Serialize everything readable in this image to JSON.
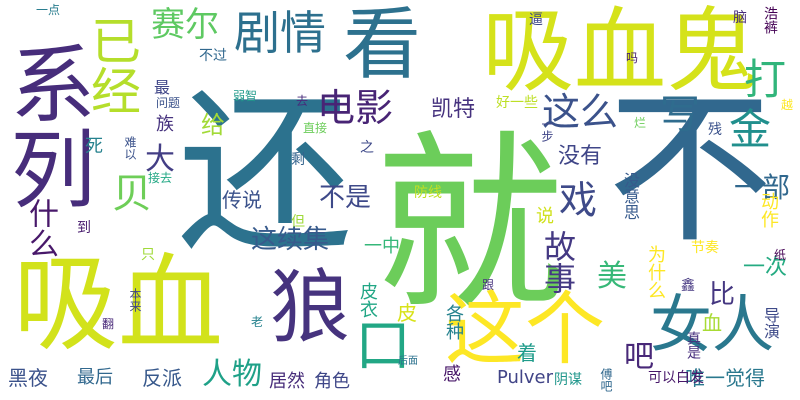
{
  "words": [
    {
      "text": "还",
      "color": "#2c728e"
    },
    {
      "text": "就",
      "color": "#6ccd5a"
    },
    {
      "text": "不",
      "color": "#31688e"
    },
    {
      "text": "吸血鬼",
      "color": "#d5e21a"
    },
    {
      "text": "吸血",
      "color": "#d2e21b"
    },
    {
      "text": "系列",
      "color": "#472d7b"
    },
    {
      "text": "看",
      "color": "#2d718e"
    },
    {
      "text": "狼",
      "color": "#46337e"
    },
    {
      "text": "这个",
      "color": "#fde725"
    },
    {
      "text": "女人",
      "color": "#2a788e"
    },
    {
      "text": "已经",
      "color": "#b5de2b"
    },
    {
      "text": "剧情",
      "color": "#2d708e"
    },
    {
      "text": "赛尔",
      "color": "#5ec962"
    },
    {
      "text": "电影",
      "color": "#482475"
    },
    {
      "text": "打",
      "color": "#31b57b"
    },
    {
      "text": "写",
      "color": "#2f6c8e"
    },
    {
      "text": "金",
      "color": "#218f8d"
    },
    {
      "text": "这么",
      "color": "#3b528b"
    },
    {
      "text": "戏",
      "color": "#3e4a89"
    },
    {
      "text": "贝",
      "color": "#6ece58"
    },
    {
      "text": "一部",
      "color": "#31688e"
    },
    {
      "text": "故事",
      "color": "#443983"
    },
    {
      "text": "这续集",
      "color": "#375a8c"
    },
    {
      "text": "美",
      "color": "#37b878"
    },
    {
      "text": "人物",
      "color": "#1fa188"
    },
    {
      "text": "大",
      "color": "#433e85"
    },
    {
      "text": "什么",
      "color": "#48186a"
    },
    {
      "text": "不是",
      "color": "#3e4989"
    },
    {
      "text": "吧",
      "color": "#482878"
    },
    {
      "text": "没有",
      "color": "#404688"
    },
    {
      "text": "传说",
      "color": "#3b528b"
    },
    {
      "text": "凯特",
      "color": "#46327e"
    },
    {
      "text": "给",
      "color": "#a2da37"
    },
    {
      "text": "比",
      "color": "#453781"
    },
    {
      "text": "一次",
      "color": "#25ab82"
    },
    {
      "text": "反派",
      "color": "#38598c"
    },
    {
      "text": "黑夜",
      "color": "#3b528b"
    },
    {
      "text": "最后",
      "color": "#31688e"
    },
    {
      "text": "居然",
      "color": "#472c7a"
    },
    {
      "text": "角色",
      "color": "#3f4788"
    },
    {
      "text": "唯一觉得",
      "color": "#2a788e"
    },
    {
      "text": "Pulver",
      "color": "#414487"
    },
    {
      "text": "为什么",
      "color": "#fde725"
    },
    {
      "text": "动作",
      "color": "#fde725"
    },
    {
      "text": "着",
      "color": "#1e9b8a"
    },
    {
      "text": "各种",
      "color": "#26828e"
    },
    {
      "text": "皮",
      "color": "#d8e219"
    },
    {
      "text": "皮衣",
      "color": "#21a685"
    },
    {
      "text": "血",
      "color": "#a8db34"
    },
    {
      "text": "口",
      "color": "#22a785"
    },
    {
      "text": "感",
      "color": "#481769"
    },
    {
      "text": "一中",
      "color": "#35b779"
    },
    {
      "text": "族",
      "color": "#46327e"
    },
    {
      "text": "死",
      "color": "#26828e"
    },
    {
      "text": "最",
      "color": "#404688"
    },
    {
      "text": "到",
      "color": "#481c6e"
    },
    {
      "text": "好一些",
      "color": "#bddf26"
    },
    {
      "text": "没意思",
      "color": "#375a8c"
    },
    {
      "text": "真是",
      "color": "#472f7d"
    },
    {
      "text": "导演",
      "color": "#3e4a89"
    },
    {
      "text": "节奏",
      "color": "#fde725"
    },
    {
      "text": "纸",
      "color": "#440154"
    },
    {
      "text": "说",
      "color": "#d0e11c"
    },
    {
      "text": "但",
      "color": "#9fda3a"
    },
    {
      "text": "防线",
      "color": "#c0df25"
    },
    {
      "text": "之",
      "color": "#3e4989"
    },
    {
      "text": "剩",
      "color": "#33638d"
    },
    {
      "text": "直接",
      "color": "#6ccd5a"
    },
    {
      "text": "问题",
      "color": "#3b528b"
    },
    {
      "text": "难以",
      "color": "#3b528b"
    },
    {
      "text": "接去",
      "color": "#22a884"
    },
    {
      "text": "去",
      "color": "#472a7a"
    },
    {
      "text": "弱智",
      "color": "#1f9a8a"
    },
    {
      "text": "不过",
      "color": "#31688e"
    },
    {
      "text": "一点",
      "color": "#287c8e"
    },
    {
      "text": "逼",
      "color": "#3f4788"
    },
    {
      "text": "吗",
      "color": "#482173"
    },
    {
      "text": "脑",
      "color": "#472c7a"
    },
    {
      "text": "浩裤",
      "color": "#440154"
    },
    {
      "text": "越",
      "color": "#fde725"
    },
    {
      "text": "烂",
      "color": "#6ccd5a"
    },
    {
      "text": "残",
      "color": "#3b528b"
    },
    {
      "text": "一步",
      "color": "#404688"
    },
    {
      "text": "只",
      "color": "#a0da39"
    },
    {
      "text": "跟",
      "color": "#46327e"
    },
    {
      "text": "老",
      "color": "#26828e"
    },
    {
      "text": "鑫",
      "color": "#453781"
    },
    {
      "text": "可以白发",
      "color": "#48186a"
    },
    {
      "text": "阴谋",
      "color": "#1f968b"
    },
    {
      "text": "傅吧",
      "color": "#31688e"
    },
    {
      "text": "后面",
      "color": "#2c728e"
    },
    {
      "text": "翻",
      "color": "#482878"
    },
    {
      "text": "本来",
      "color": "#404688"
    }
  ]
}
